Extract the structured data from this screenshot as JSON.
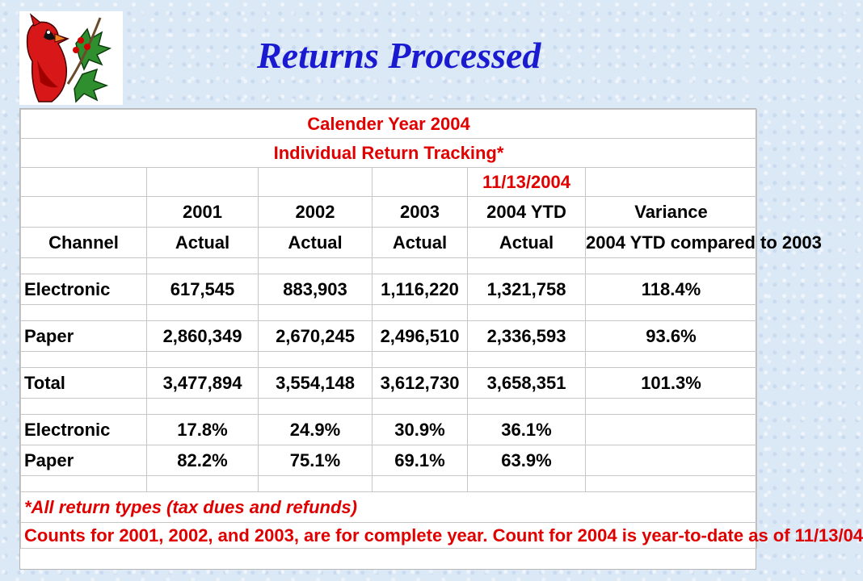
{
  "slide": {
    "title": "Returns Processed",
    "logo_icon": "cardinal-holly-icon"
  },
  "table": {
    "title1": "Calender Year 2004",
    "title2": "Individual Return Tracking*",
    "date": "11/13/2004",
    "years": [
      "2001",
      "2002",
      "2003",
      "2004 YTD"
    ],
    "variance_label": "Variance",
    "channel_label": "Channel",
    "actual_label": "Actual",
    "variance_sub": "2004 YTD compared to 2003",
    "rows": [
      {
        "label": "Electronic",
        "values": [
          "617,545",
          "883,903",
          "1,116,220",
          "1,321,758"
        ],
        "variance": "118.4%"
      },
      {
        "label": "Paper",
        "values": [
          "2,860,349",
          "2,670,245",
          "2,496,510",
          "2,336,593"
        ],
        "variance": "93.6%"
      },
      {
        "label": "Total",
        "values": [
          "3,477,894",
          "3,554,148",
          "3,612,730",
          "3,658,351"
        ],
        "variance": "101.3%"
      }
    ],
    "pct_rows": [
      {
        "label": "Electronic",
        "values": [
          "17.8%",
          "24.9%",
          "30.9%",
          "36.1%"
        ]
      },
      {
        "label": "Paper",
        "values": [
          "82.2%",
          "75.1%",
          "69.1%",
          "63.9%"
        ]
      }
    ],
    "footnote1": "*All return types (tax dues and refunds)",
    "footnote2": "Counts for 2001, 2002, and 2003, are for complete year.  Count for 2004 is year-to-date as of 11/13/04"
  },
  "colors": {
    "title": "#1a1ad0",
    "header_red": "#e00000",
    "background": "#dbe8f6"
  }
}
